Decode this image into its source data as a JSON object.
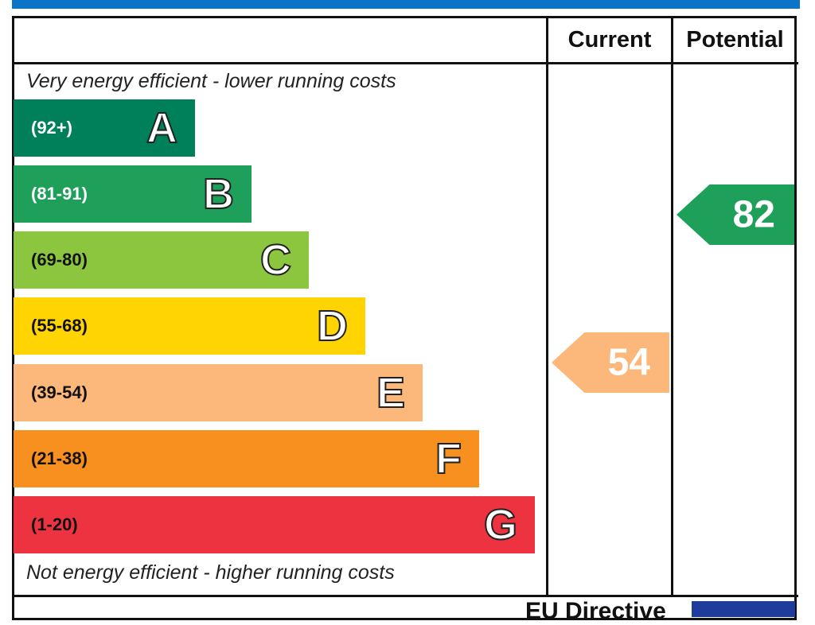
{
  "chart_data": {
    "type": "bar",
    "columns": [
      "Current",
      "Potential"
    ],
    "top_note": "Very energy efficient - lower running costs",
    "bottom_note": "Not energy efficient - higher running costs",
    "bands": [
      {
        "letter": "A",
        "range": "(92+)",
        "color": "#00805a",
        "text_color": "#fff"
      },
      {
        "letter": "B",
        "range": "(81-91)",
        "color": "#1ea05a",
        "text_color": "#fff"
      },
      {
        "letter": "C",
        "range": "(69-80)",
        "color": "#8cc63f",
        "text_color": "#111"
      },
      {
        "letter": "D",
        "range": "(55-68)",
        "color": "#ffd400",
        "text_color": "#111"
      },
      {
        "letter": "E",
        "range": "(39-54)",
        "color": "#fcb77a",
        "text_color": "#111"
      },
      {
        "letter": "F",
        "range": "(21-38)",
        "color": "#f7901e",
        "text_color": "#111"
      },
      {
        "letter": "G",
        "range": "(1-20)",
        "color": "#ee3340",
        "text_color": "#111"
      }
    ],
    "current": {
      "value": "54",
      "band": "E",
      "color": "#fcb77a"
    },
    "potential": {
      "value": "82",
      "band": "B",
      "color": "#1ea05a"
    }
  },
  "footer": {
    "text": "EU Directive"
  }
}
